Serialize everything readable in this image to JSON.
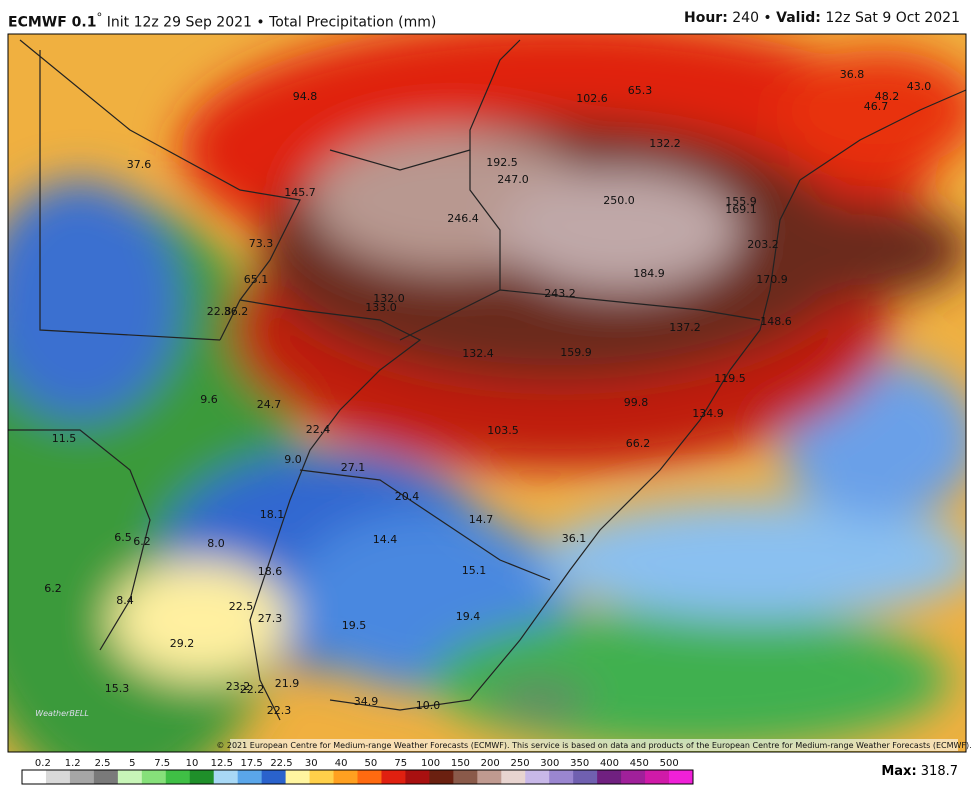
{
  "header": {
    "model": "ECMWF 0.1",
    "degree": "°",
    "init": "Init 12z 29 Sep 2021 • Total Precipitation (mm)",
    "hour_label": "Hour:",
    "hour": "240 •",
    "valid_label": "Valid:",
    "valid": "12z Sat 9 Oct 2021"
  },
  "map": {
    "logo": "WeatherBELL",
    "copyright": "© 2021 European Centre for Medium-range Weather Forecasts (ECMWF). This service is based on data and products of the European Centre for Medium-range Weather Forecasts (ECMWF).",
    "labels": [
      "94.8",
      "102.6",
      "65.3",
      "36.8",
      "43.0",
      "48.2",
      "46.7",
      "37.6",
      "132.2",
      "192.5",
      "247.0",
      "145.7",
      "250.0",
      "155.9",
      "169.1",
      "246.4",
      "73.3",
      "203.2",
      "184.9",
      "170.9",
      "65.1",
      "243.2",
      "132.0",
      "133.0",
      "22.8",
      "36.2",
      "148.6",
      "137.2",
      "132.4",
      "159.9",
      "119.5",
      "9.6",
      "24.7",
      "99.8",
      "134.9",
      "22.4",
      "103.5",
      "11.5",
      "66.2",
      "9.0",
      "27.1",
      "20.4",
      "14.7",
      "18.1",
      "36.1",
      "6.5",
      "6.2",
      "8.0",
      "14.4",
      "18.6",
      "15.1",
      "6.2",
      "8.4",
      "22.5",
      "27.3",
      "19.5",
      "19.4",
      "29.2",
      "15.3",
      "23.2",
      "22.2",
      "21.9",
      "22.3",
      "34.9",
      "10.0"
    ]
  },
  "legend": {
    "ticks": [
      "0.2",
      "1.2",
      "2.5",
      "5",
      "7.5",
      "10",
      "12.5",
      "17.5",
      "22.5",
      "30",
      "40",
      "50",
      "75",
      "100",
      "150",
      "200",
      "250",
      "300",
      "350",
      "400",
      "450",
      "500"
    ],
    "colors": [
      "#ffffff",
      "#d9d9d9",
      "#a6a6a6",
      "#7a7a7a",
      "#c8f5b8",
      "#86e07a",
      "#3fbf45",
      "#1f8f2a",
      "#a8d8f5",
      "#5aa6ea",
      "#2a62cc",
      "#fff5a0",
      "#ffd04a",
      "#ffa020",
      "#ff6a10",
      "#e02010",
      "#a81010",
      "#6b2010",
      "#8a5a4a",
      "#c09a90",
      "#e8d4d0",
      "#c8b8e8",
      "#9a86d0",
      "#7060b0",
      "#702080",
      "#a0209a",
      "#d01aa8",
      "#f020d8"
    ],
    "max_label": "Max:",
    "max": "318.7"
  }
}
